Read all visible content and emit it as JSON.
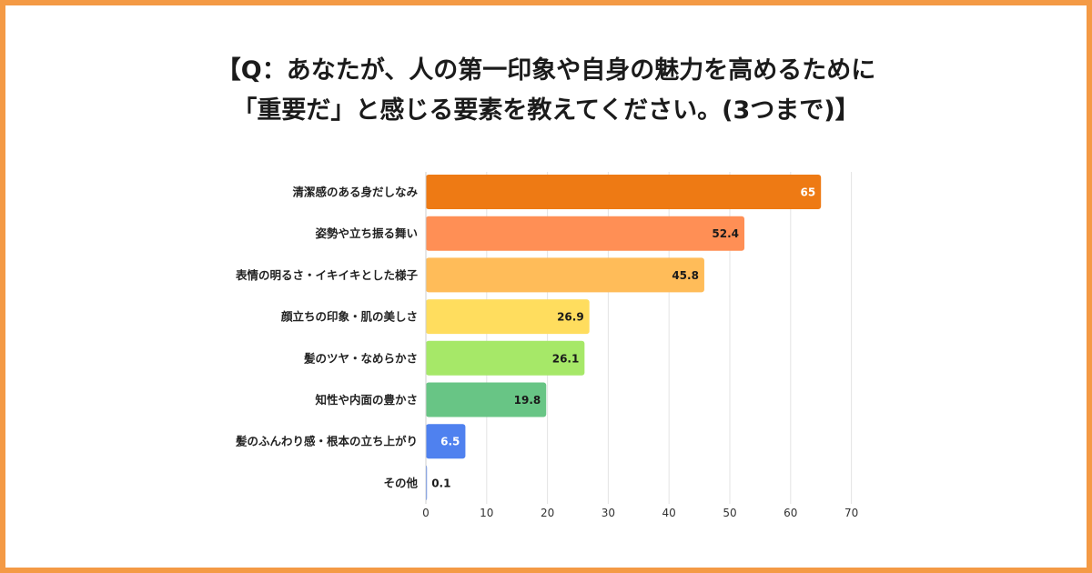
{
  "title": {
    "line1": "【Q：あなたが、人の第一印象や自身の魅力を高めるために",
    "line2": "「重要だ」と感じる要素を教えてください。(3つまで)】"
  },
  "colors": {
    "frame": "#f49a45"
  },
  "chart_data": {
    "type": "bar",
    "orientation": "horizontal",
    "categories": [
      "清潔感のある身だしなみ",
      "姿勢や立ち振る舞い",
      "表情の明るさ・イキイキとした様子",
      "顔立ちの印象・肌の美しさ",
      "髪のツヤ・なめらかさ",
      "知性や内面の豊かさ",
      "髪のふんわり感・根本の立ち上がり",
      "その他"
    ],
    "values": [
      65,
      52.4,
      45.8,
      26.9,
      26.1,
      19.8,
      6.5,
      0.1
    ],
    "value_labels": [
      "65",
      "52.4",
      "45.8",
      "26.9",
      "26.1",
      "19.8",
      "6.5",
      "0.1"
    ],
    "bar_colors": [
      "#ee7a14",
      "#ff8f55",
      "#ffbc59",
      "#ffdd5e",
      "#a6e868",
      "#68c585",
      "#4f81ef",
      "#4f81ef"
    ],
    "xlim": [
      0,
      70
    ],
    "xticks": [
      "0",
      "10",
      "20",
      "30",
      "40",
      "50",
      "60",
      "70"
    ],
    "grid": true
  }
}
